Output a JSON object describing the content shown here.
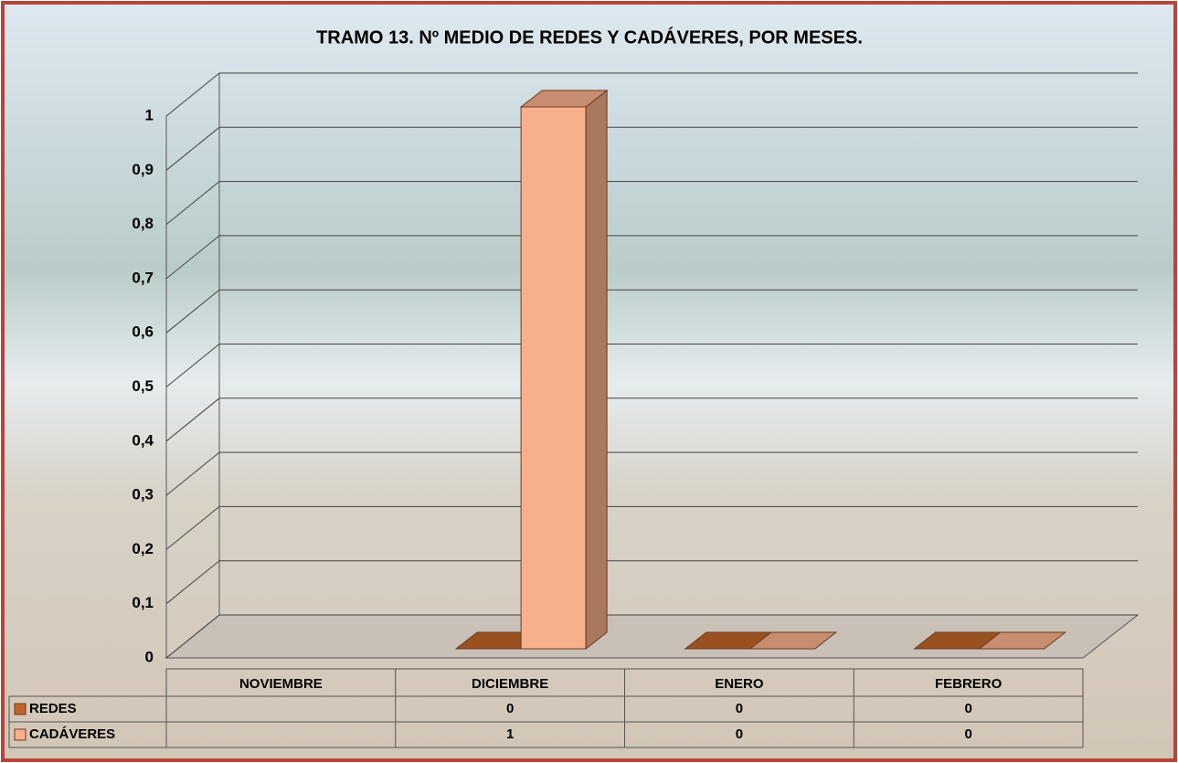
{
  "chart_data": {
    "type": "bar3d",
    "title": "TRAMO 13. Nº MEDIO DE REDES Y CADÁVERES, POR MESES.",
    "categories": [
      "NOVIEMBRE",
      "DICIEMBRE",
      "ENERO",
      "FEBRERO"
    ],
    "series": [
      {
        "name": "REDES",
        "color": "#c0652a",
        "values": [
          null,
          0,
          0,
          0
        ]
      },
      {
        "name": "CADÁVERES",
        "color": "#f8b08c",
        "values": [
          null,
          1,
          0,
          0
        ]
      }
    ],
    "ylim": [
      0,
      1
    ],
    "yticks": [
      0,
      {
        "value": 0.1,
        "label": "0,1"
      },
      {
        "value": 0.2,
        "label": "0,2"
      },
      {
        "value": 0.3,
        "label": "0,3"
      },
      {
        "value": 0.4,
        "label": "0,4"
      },
      {
        "value": 0.5,
        "label": "0,5"
      },
      {
        "value": 0.6,
        "label": "0,6"
      },
      {
        "value": 0.7,
        "label": "0,7"
      },
      {
        "value": 0.8,
        "label": "0,8"
      },
      {
        "value": 0.9,
        "label": "0,9"
      },
      1
    ],
    "grid": true,
    "data_table": true
  }
}
